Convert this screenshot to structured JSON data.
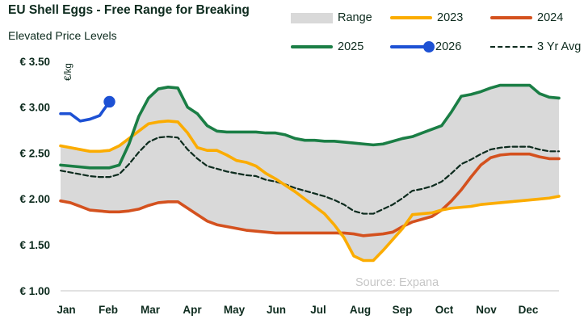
{
  "header": {
    "title": "EU Shell Eggs - Free Range for Breaking",
    "subtitle": "Elevated Price Levels"
  },
  "legend": {
    "items": [
      {
        "label": "Range",
        "swatch": "band",
        "color": "#D9D9D9"
      },
      {
        "label": "2023",
        "swatch": "line",
        "color": "#FBAC00"
      },
      {
        "label": "2024",
        "swatch": "line",
        "color": "#D4511E"
      },
      {
        "label": "2025",
        "swatch": "line",
        "color": "#1A7E45"
      },
      {
        "label": "2026",
        "swatch": "line-dot",
        "color": "#1D51D4"
      },
      {
        "label": "3 Yr Avg",
        "swatch": "dashed",
        "color": "#0D2B1E"
      }
    ]
  },
  "chart_data": {
    "type": "line",
    "title": "EU Shell Eggs - Free Range for Breaking",
    "subtitle": "Elevated Price Levels",
    "ylabel": "€/kg",
    "ylim": [
      1.0,
      3.5
    ],
    "grid": false,
    "legend_position": "top-right",
    "x_categories": [
      "Jan",
      "Feb",
      "Mar",
      "Apr",
      "May",
      "Jun",
      "Jul",
      "Aug",
      "Sep",
      "Oct",
      "Nov",
      "Dec"
    ],
    "x_resolution": "weekly index 0-51 spanning Jan-Dec",
    "y_ticks": [
      {
        "value": 3.5,
        "label": "€ 3.50"
      },
      {
        "value": 3.0,
        "label": "€ 3.00"
      },
      {
        "value": 2.5,
        "label": "€ 2.50"
      },
      {
        "value": 2.0,
        "label": "€ 2.00"
      },
      {
        "value": 1.5,
        "label": "€ 1.50"
      },
      {
        "value": 1.0,
        "label": "€ 1.00"
      }
    ],
    "range_band": {
      "label": "Range",
      "color": "#D9D9D9",
      "definition": "min-max envelope of the 2023, 2024 and 2025 series"
    },
    "series": [
      {
        "name": "2023",
        "color": "#FBAC00",
        "style": "solid",
        "values": [
          2.58,
          2.56,
          2.54,
          2.52,
          2.52,
          2.53,
          2.58,
          2.66,
          2.74,
          2.82,
          2.84,
          2.85,
          2.84,
          2.72,
          2.56,
          2.53,
          2.53,
          2.48,
          2.42,
          2.4,
          2.36,
          2.28,
          2.22,
          2.15,
          2.08,
          2.0,
          1.92,
          1.84,
          1.72,
          1.58,
          1.38,
          1.33,
          1.33,
          1.44,
          1.56,
          1.68,
          1.83,
          1.84,
          1.85,
          1.88,
          1.9,
          1.91,
          1.92,
          1.94,
          1.95,
          1.96,
          1.97,
          1.98,
          1.99,
          2.0,
          2.01,
          2.03
        ]
      },
      {
        "name": "2024",
        "color": "#D4511E",
        "style": "solid",
        "values": [
          1.98,
          1.96,
          1.92,
          1.88,
          1.87,
          1.86,
          1.86,
          1.87,
          1.89,
          1.93,
          1.96,
          1.97,
          1.97,
          1.9,
          1.83,
          1.76,
          1.72,
          1.7,
          1.68,
          1.66,
          1.65,
          1.64,
          1.63,
          1.63,
          1.63,
          1.63,
          1.63,
          1.63,
          1.63,
          1.63,
          1.62,
          1.6,
          1.61,
          1.62,
          1.64,
          1.7,
          1.75,
          1.78,
          1.81,
          1.88,
          1.98,
          2.1,
          2.24,
          2.37,
          2.45,
          2.48,
          2.49,
          2.49,
          2.49,
          2.46,
          2.44,
          2.44
        ]
      },
      {
        "name": "2025",
        "color": "#1A7E45",
        "style": "solid",
        "values": [
          2.37,
          2.36,
          2.35,
          2.34,
          2.34,
          2.34,
          2.37,
          2.6,
          2.9,
          3.1,
          3.2,
          3.22,
          3.21,
          3.0,
          2.93,
          2.8,
          2.74,
          2.73,
          2.73,
          2.73,
          2.73,
          2.72,
          2.72,
          2.7,
          2.66,
          2.64,
          2.64,
          2.63,
          2.63,
          2.62,
          2.61,
          2.6,
          2.59,
          2.6,
          2.63,
          2.66,
          2.68,
          2.72,
          2.76,
          2.8,
          2.95,
          3.12,
          3.14,
          3.17,
          3.21,
          3.24,
          3.24,
          3.24,
          3.24,
          3.15,
          3.11,
          3.1
        ]
      },
      {
        "name": "2026",
        "color": "#1D51D4",
        "style": "solid",
        "end_marker": true,
        "values": [
          2.93,
          2.93,
          2.85,
          2.87,
          2.91,
          3.06
        ]
      },
      {
        "name": "3 Yr Avg",
        "color": "#0D2B1E",
        "style": "dashed",
        "values": [
          2.31,
          2.29,
          2.27,
          2.25,
          2.24,
          2.24,
          2.27,
          2.38,
          2.51,
          2.62,
          2.67,
          2.68,
          2.67,
          2.54,
          2.44,
          2.36,
          2.33,
          2.3,
          2.28,
          2.26,
          2.25,
          2.21,
          2.19,
          2.16,
          2.12,
          2.09,
          2.06,
          2.03,
          1.99,
          1.94,
          1.87,
          1.84,
          1.84,
          1.89,
          1.94,
          2.01,
          2.09,
          2.11,
          2.14,
          2.19,
          2.28,
          2.38,
          2.43,
          2.49,
          2.54,
          2.56,
          2.57,
          2.57,
          2.57,
          2.54,
          2.52,
          2.52
        ]
      }
    ],
    "source": "Source: Expana"
  }
}
